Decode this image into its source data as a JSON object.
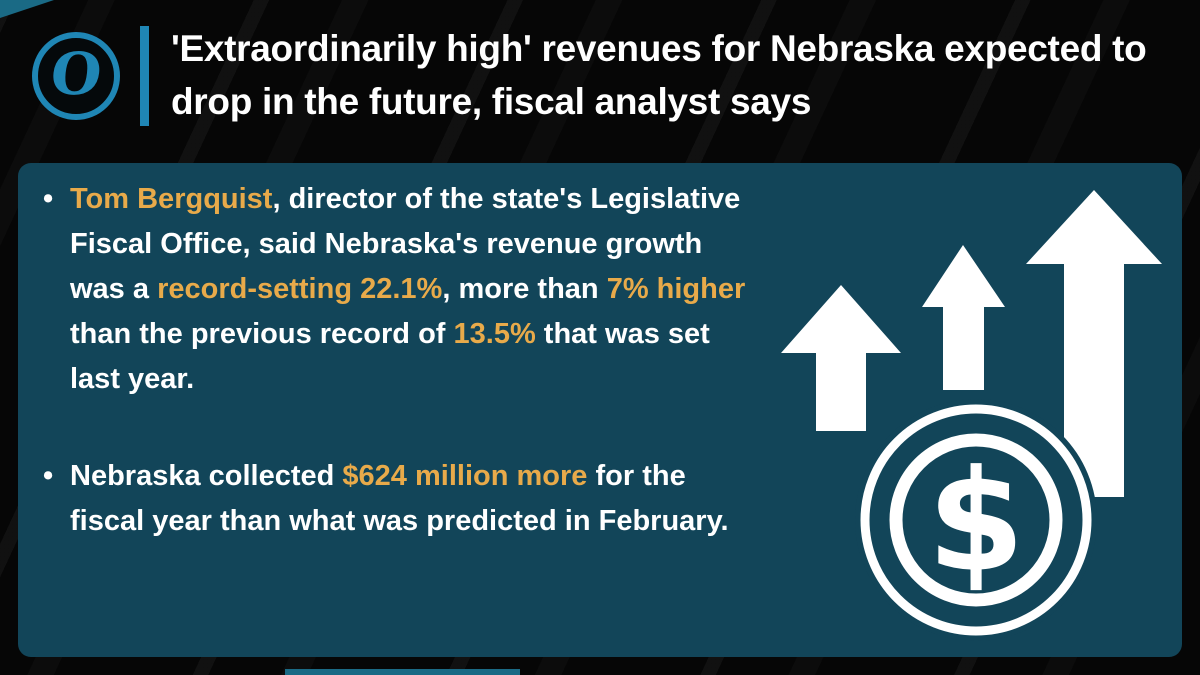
{
  "header": {
    "logo": "O",
    "headline": "'Extraordinarily high' revenues for Nebraska expected to drop in the future, fiscal analyst says"
  },
  "panel": {
    "bullets": [
      {
        "segments": [
          {
            "text": "Tom Bergquist",
            "gold": true
          },
          {
            "text": ", director of the state's Legislative Fiscal Office, said Nebraska's revenue growth was a ",
            "gold": false
          },
          {
            "text": "record-setting 22.1%",
            "gold": true
          },
          {
            "text": ", more than ",
            "gold": false
          },
          {
            "text": "7% higher",
            "gold": true
          },
          {
            "text": " than the previous record of ",
            "gold": false
          },
          {
            "text": "13.5%",
            "gold": true
          },
          {
            "text": " that was set last year.",
            "gold": false
          }
        ]
      },
      {
        "segments": [
          {
            "text": "Nebraska collected ",
            "gold": false
          },
          {
            "text": "$624 million more",
            "gold": true
          },
          {
            "text": " for the fiscal year than what was predicted in February.",
            "gold": false
          }
        ]
      }
    ],
    "dollar_sign": "$"
  },
  "colors": {
    "gold": "#e8aa4a",
    "panel": "#124559",
    "logo_blue": "#1f86b5",
    "background": "#060606"
  }
}
